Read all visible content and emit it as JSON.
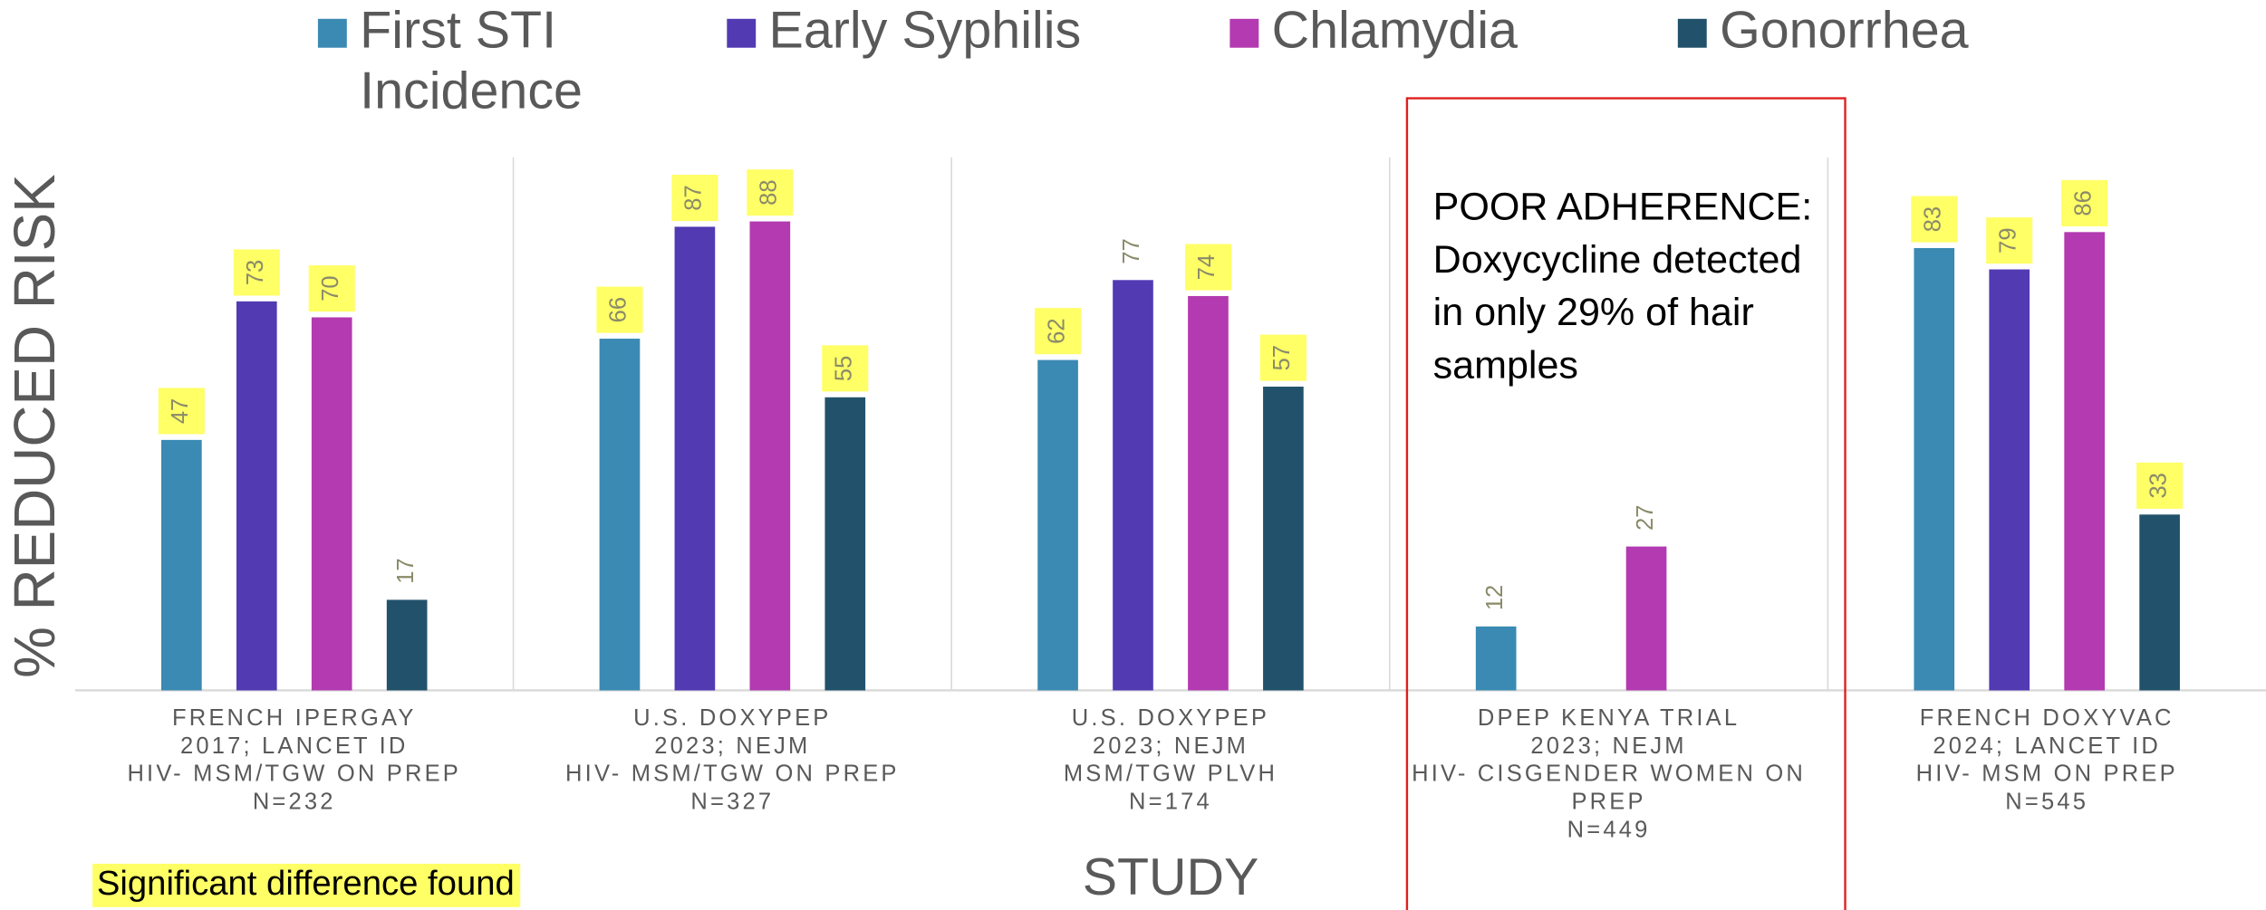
{
  "chart_data": {
    "type": "bar",
    "y_label": "% REDUCED RISK",
    "x_label": "STUDY",
    "categories": [
      [
        "FRENCH IPERGAY",
        "2017; LANCET ID",
        "HIV- MSM/TGW ON PREP",
        "N=232"
      ],
      [
        "U.S. DOXYPEP",
        "2023; NEJM",
        "HIV- MSM/TGW ON PREP",
        "N=327"
      ],
      [
        "U.S. DOXYPEP",
        "2023; NEJM",
        "MSM/TGW PLVH",
        "N=174"
      ],
      [
        "DPEP KENYA TRIAL",
        "2023; NEJM",
        "HIV- CISGENDER WOMEN ON",
        "PREP",
        "N=449"
      ],
      [
        "FRENCH DOXYVAC",
        "2024; LANCET ID",
        "HIV- MSM ON PREP",
        "N=545"
      ]
    ],
    "series": [
      {
        "name": "First STI Incidence",
        "color": "#3a8ab3",
        "values": [
          47,
          66,
          62,
          12,
          83
        ],
        "highlighted": [
          true,
          true,
          true,
          false,
          true
        ]
      },
      {
        "name": "Early Syphilis",
        "color": "#523ab3",
        "values": [
          73,
          87,
          77,
          null,
          79
        ],
        "highlighted": [
          true,
          true,
          false,
          false,
          true
        ]
      },
      {
        "name": "Chlamydia",
        "color": "#b33ab0",
        "values": [
          70,
          88,
          74,
          27,
          86
        ],
        "highlighted": [
          true,
          true,
          true,
          false,
          true
        ]
      },
      {
        "name": "Gonorrhea",
        "color": "#22526b",
        "values": [
          17,
          55,
          57,
          null,
          33
        ],
        "highlighted": [
          false,
          true,
          true,
          false,
          true
        ]
      }
    ],
    "ylim": [
      0,
      100
    ],
    "highlight_color": "#ffff66",
    "annotation": {
      "category": 3,
      "color": "#e02020",
      "lines": [
        "POOR ADHERENCE:",
        "Doxycycline detected",
        "in only 29% of hair",
        "samples"
      ]
    },
    "highlight_note": "Significant difference found"
  }
}
